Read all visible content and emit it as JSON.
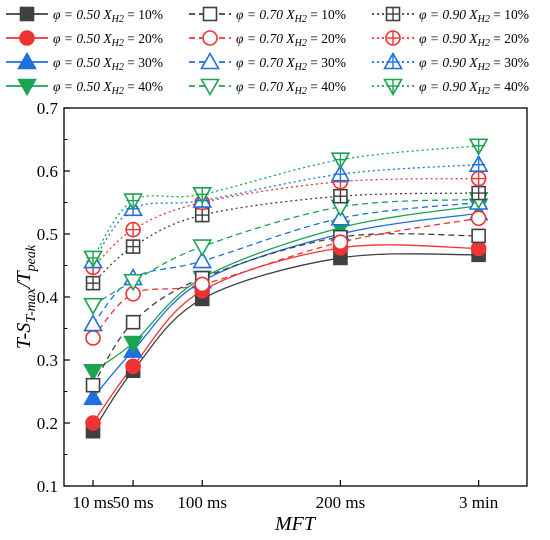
{
  "chart_data": {
    "type": "line",
    "title": "",
    "xlabel": "MFT",
    "ylabel": {
      "base": "T-S",
      "sub": "T-max",
      "mid": "/T",
      "sub2": "peak"
    },
    "categories": [
      "10 ms",
      "50 ms",
      "100 ms",
      "200 ms",
      "3 min"
    ],
    "x_positions": [
      0.21,
      0.5,
      1.0,
      2.0,
      3.0
    ],
    "ylim": [
      0.1,
      0.7
    ],
    "yticks": [
      "0.1",
      "0.2",
      "0.3",
      "0.4",
      "0.5",
      "0.6",
      "0.7"
    ],
    "grid": false,
    "legend_position": "top",
    "series": [
      {
        "label": {
          "phi": "φ = 0.50",
          "x": "X",
          "sub": "H2",
          "val": "= 10%"
        },
        "color": "#404040",
        "marker": "square",
        "filled": true,
        "dash": "solid",
        "values": [
          0.187,
          0.283,
          0.397,
          0.462,
          0.467
        ]
      },
      {
        "label": {
          "phi": "φ = 0.50",
          "x": "X",
          "sub": "H2",
          "val": "= 20%"
        },
        "color": "#ee3333",
        "marker": "circle",
        "filled": true,
        "dash": "solid",
        "values": [
          0.2,
          0.29,
          0.41,
          0.478,
          0.477
        ]
      },
      {
        "label": {
          "phi": "φ = 0.50",
          "x": "X",
          "sub": "H2",
          "val": "= 30%"
        },
        "color": "#1f6fde",
        "marker": "triangle-up",
        "filled": true,
        "dash": "solid",
        "values": [
          0.24,
          0.315,
          0.425,
          0.5,
          0.533
        ]
      },
      {
        "label": {
          "phi": "φ = 0.50",
          "x": "X",
          "sub": "H2",
          "val": "= 40%"
        },
        "color": "#1aa352",
        "marker": "triangle-down",
        "filled": true,
        "dash": "solid",
        "values": [
          0.282,
          0.327,
          0.43,
          0.51,
          0.545
        ]
      },
      {
        "label": {
          "phi": "φ = 0.70",
          "x": "X",
          "sub": "H2",
          "val": "= 10%"
        },
        "color": "#404040",
        "marker": "square",
        "filled": false,
        "dash": "dashed",
        "values": [
          0.26,
          0.36,
          0.43,
          0.495,
          0.497
        ]
      },
      {
        "label": {
          "phi": "φ = 0.70",
          "x": "X",
          "sub": "H2",
          "val": "= 20%"
        },
        "color": "#ee3333",
        "marker": "circle",
        "filled": false,
        "dash": "dashed",
        "values": [
          0.335,
          0.405,
          0.42,
          0.487,
          0.525
        ]
      },
      {
        "label": {
          "phi": "φ = 0.70",
          "x": "X",
          "sub": "H2",
          "val": "= 30%"
        },
        "color": "#1f6fde",
        "marker": "triangle-up",
        "filled": false,
        "dash": "dashed",
        "values": [
          0.357,
          0.43,
          0.457,
          0.525,
          0.55
        ]
      },
      {
        "label": {
          "phi": "φ = 0.70",
          "x": "X",
          "sub": "H2",
          "val": "= 40%"
        },
        "color": "#1aa352",
        "marker": "triangle-down",
        "filled": false,
        "dash": "dashed",
        "values": [
          0.387,
          0.425,
          0.48,
          0.543,
          0.555
        ]
      },
      {
        "label": {
          "phi": "φ = 0.90",
          "x": "X",
          "sub": "H2",
          "val": "= 10%"
        },
        "color": "#404040",
        "marker": "square-cross",
        "filled": false,
        "dash": "dotted",
        "values": [
          0.422,
          0.48,
          0.53,
          0.56,
          0.565
        ]
      },
      {
        "label": {
          "phi": "φ = 0.90",
          "x": "X",
          "sub": "H2",
          "val": "= 20%"
        },
        "color": "#ee3333",
        "marker": "circle-cross",
        "filled": false,
        "dash": "dotted",
        "values": [
          0.447,
          0.507,
          0.55,
          0.583,
          0.588
        ]
      },
      {
        "label": {
          "phi": "φ = 0.90",
          "x": "X",
          "sub": "H2",
          "val": "= 30%"
        },
        "color": "#1f6fde",
        "marker": "triangle-up-cross",
        "filled": false,
        "dash": "dotted",
        "values": [
          0.457,
          0.54,
          0.553,
          0.595,
          0.61
        ]
      },
      {
        "label": {
          "phi": "φ = 0.90",
          "x": "X",
          "sub": "H2",
          "val": "= 40%"
        },
        "color": "#1aa352",
        "marker": "triangle-down-cross",
        "filled": false,
        "dash": "dotted",
        "values": [
          0.462,
          0.553,
          0.563,
          0.618,
          0.64
        ]
      }
    ]
  }
}
